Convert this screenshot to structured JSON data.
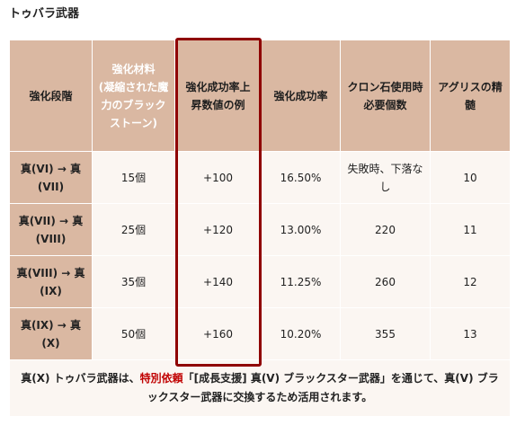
{
  "title": "トゥバラ武器",
  "table": {
    "headers": {
      "stage": "強化段階",
      "material_main": "強化材料",
      "material_sub": "(凝縮された魔力のブラックストーン)",
      "rate_up": "強化成功率上昇数値の例",
      "rate": "強化成功率",
      "cron": "クロン石使用時必要個数",
      "agris": "アグリスの精髄"
    },
    "rows": [
      {
        "stage": "真(VI) → 真(VII)",
        "material": "15個",
        "rate_up": "+100",
        "rate": "16.50%",
        "cron": "失敗時、下落なし",
        "agris": "10"
      },
      {
        "stage": "真(VII) → 真(VIII)",
        "material": "25個",
        "rate_up": "+120",
        "rate": "13.00%",
        "cron": "220",
        "agris": "11"
      },
      {
        "stage": "真(VIII) → 真(IX)",
        "material": "35個",
        "rate_up": "+140",
        "rate": "11.25%",
        "cron": "260",
        "agris": "12"
      },
      {
        "stage": "真(IX) → 真(X)",
        "material": "50個",
        "rate_up": "+160",
        "rate": "10.20%",
        "cron": "355",
        "agris": "13"
      }
    ],
    "note": {
      "before": "真(X) トゥバラ武器は、",
      "highlight": "特別依頼",
      "after": "「[成長支援] 真(V) ブラックスター武器」を通じて、真(V) ブラックスター武器に交換するため活用されます。"
    }
  },
  "colors": {
    "header_bg": "#dab8a2",
    "cell_bg": "#fbf6f2",
    "highlight_border": "#8f0000",
    "note_red": "#c00000"
  }
}
